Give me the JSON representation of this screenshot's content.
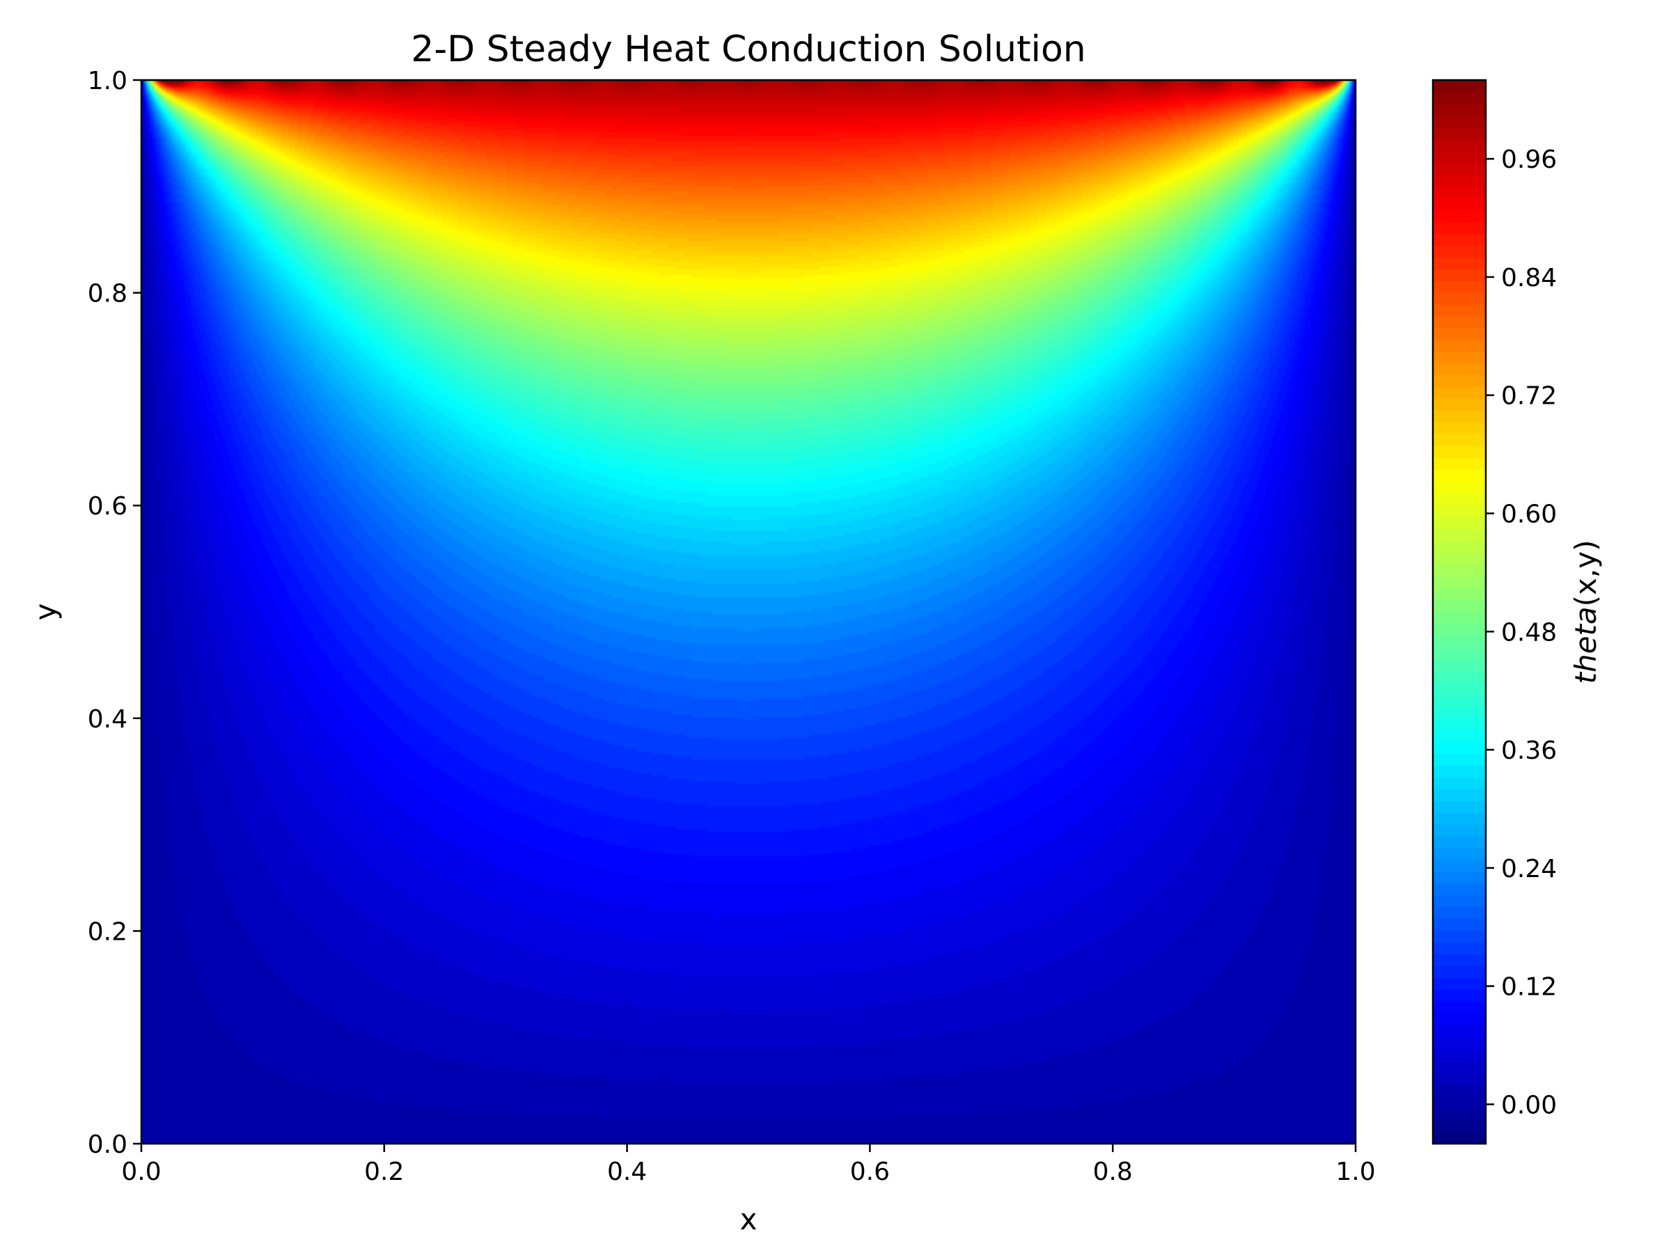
{
  "chart_data": {
    "type": "heatmap",
    "subtype": "filled-contour",
    "title": "2-D Steady Heat Conduction Solution",
    "xlabel": "x",
    "ylabel": "y",
    "xlim": [
      0.0,
      1.0
    ],
    "ylim": [
      0.0,
      1.0
    ],
    "x_ticks": [
      "0.0",
      "0.2",
      "0.4",
      "0.6",
      "0.8",
      "1.0"
    ],
    "y_ticks": [
      "0.0",
      "0.2",
      "0.4",
      "0.6",
      "0.8",
      "1.0"
    ],
    "colormap": "jet",
    "colorbar": {
      "label_italic": "theta",
      "label_rest": "(x,y)",
      "range": [
        -0.04,
        1.04
      ],
      "ticks": [
        "0.00",
        "0.12",
        "0.24",
        "0.36",
        "0.48",
        "0.60",
        "0.72",
        "0.84",
        "0.96"
      ],
      "levels": 90
    },
    "boundary_conditions": {
      "top": 1,
      "bottom": 0,
      "left": 0,
      "right": 0
    },
    "grid": false,
    "legend": "none"
  }
}
